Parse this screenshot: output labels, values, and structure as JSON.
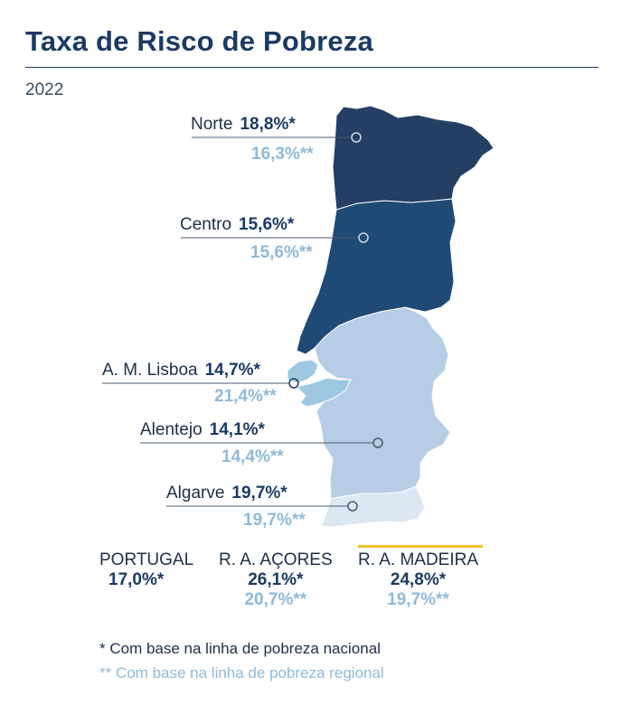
{
  "title": "Taxa de Risco de Pobreza",
  "year": "2022",
  "colors": {
    "norte": "#243f63",
    "centro": "#1f4a75",
    "lisboa": "#9ec8e2",
    "alentejo": "#b7cde6",
    "algarve": "#dce7f3",
    "national": "#1b3a63",
    "regional": "#8fbad9",
    "madeira_highlight": "#f2c21b"
  },
  "regions": [
    {
      "name": "Norte",
      "national": "18,8%*",
      "regional": "16,3%**"
    },
    {
      "name": "Centro",
      "national": "15,6%*",
      "regional": "15,6%**"
    },
    {
      "name": "A. M. Lisboa",
      "national": "14,7%*",
      "regional": "21,4%**"
    },
    {
      "name": "Alentejo",
      "national": "14,1%*",
      "regional": "14,4%**"
    },
    {
      "name": "Algarve",
      "national": "19,7%*",
      "regional": "19,7%**"
    }
  ],
  "summary": [
    {
      "name": "PORTUGAL",
      "national": "17,0%*",
      "regional": ""
    },
    {
      "name": "R. A. AÇORES",
      "national": "26,1%*",
      "regional": "20,7%**"
    },
    {
      "name": "R. A. MADEIRA",
      "national": "24,8%*",
      "regional": "19,7%**"
    }
  ],
  "notes": {
    "national": "* Com base na linha de pobreza nacional",
    "regional": "** Com base na linha de pobreza regional"
  }
}
